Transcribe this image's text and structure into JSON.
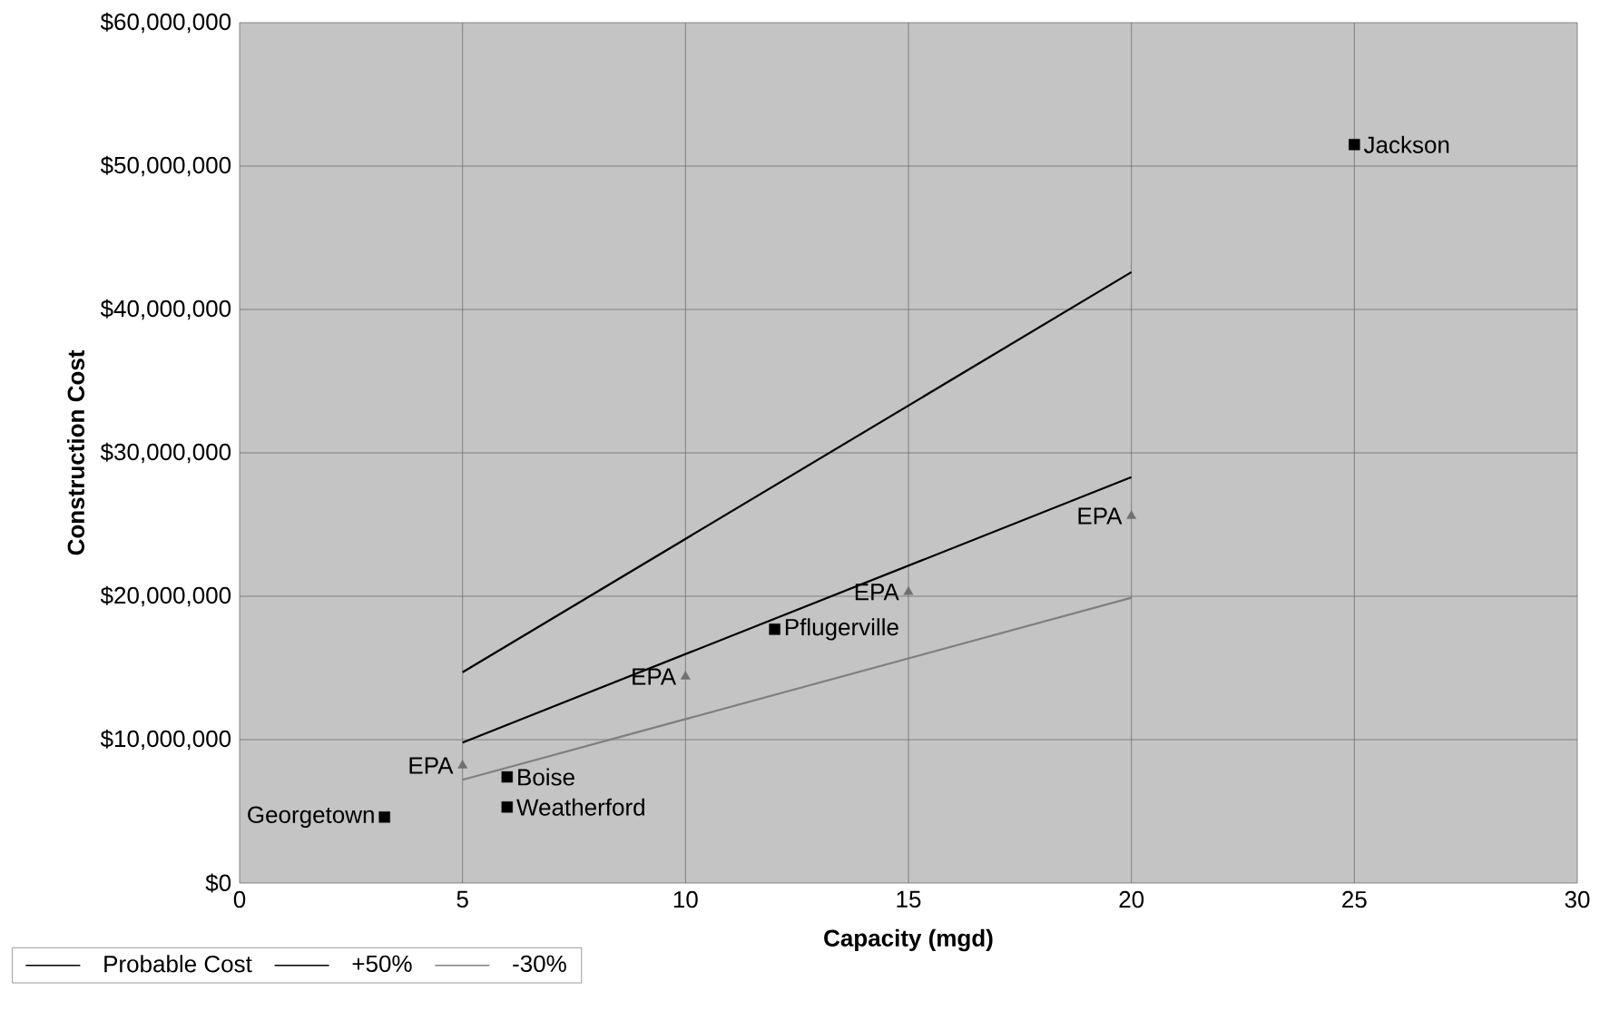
{
  "chart_data": {
    "type": "line",
    "xlabel": "Capacity (mgd)",
    "ylabel": "Construction Cost",
    "xlim": [
      0,
      30
    ],
    "xticks": [
      0,
      5,
      10,
      15,
      20,
      25,
      30
    ],
    "ylim": [
      0,
      60000000
    ],
    "yticks": [
      {
        "value": 0,
        "label": "$0"
      },
      {
        "value": 10000000,
        "label": "$10,000,000"
      },
      {
        "value": 20000000,
        "label": "$20,000,000"
      },
      {
        "value": 30000000,
        "label": "$30,000,000"
      },
      {
        "value": 40000000,
        "label": "$40,000,000"
      },
      {
        "value": 50000000,
        "label": "$50,000,000"
      },
      {
        "value": 60000000,
        "label": "$60,000,000"
      }
    ],
    "grid": true,
    "legend": "bottom left",
    "series": [
      {
        "name": "Probable Cost",
        "color": "#000000",
        "marker": "none",
        "x": [
          5,
          20
        ],
        "values": [
          9800000,
          28300000
        ]
      },
      {
        "name": "+50%",
        "color": "#000000",
        "marker": "none",
        "x": [
          5,
          20
        ],
        "values": [
          14700000,
          42600000
        ]
      },
      {
        "name": "-30%",
        "color": "#808080",
        "marker": "none",
        "x": [
          5,
          20
        ],
        "values": [
          7200000,
          19900000
        ]
      },
      {
        "type": "scatter",
        "color": "#000000",
        "marker": "square",
        "x": [
          3.25,
          6,
          6,
          12,
          25
        ],
        "values": [
          4600000,
          7400000,
          5300000,
          17700000,
          51500000
        ]
      },
      {
        "type": "scatter",
        "color": "#707070",
        "marker": "triangle",
        "x": [
          5,
          10,
          15,
          20
        ],
        "values": [
          8200000,
          14400000,
          20300000,
          25600000
        ]
      }
    ],
    "annotations": [
      {
        "text": "Georgetown",
        "x": 3.25,
        "y": 4600000
      },
      {
        "text": "Boise",
        "x": 6,
        "y": 7400000
      },
      {
        "text": "Weatherford",
        "x": 6,
        "y": 5300000
      },
      {
        "text": "Pflugerville",
        "x": 12,
        "y": 17700000
      },
      {
        "text": "Jackson",
        "x": 25,
        "y": 51500000
      },
      {
        "text": "EPA",
        "x": 5,
        "y": 8200000
      },
      {
        "text": "EPA",
        "x": 10,
        "y": 14400000
      },
      {
        "text": "EPA",
        "x": 15,
        "y": 20300000
      },
      {
        "text": "EPA",
        "x": 20,
        "y": 25600000
      }
    ]
  }
}
